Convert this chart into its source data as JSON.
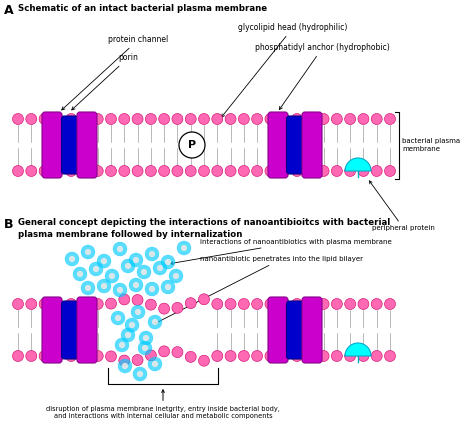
{
  "bg_color": "#ffffff",
  "membrane_color": "#FF69B4",
  "protein_color": "#CC00CC",
  "porin_color": "#0000CC",
  "peripheral_color": "#00FFFF",
  "nano_color": "#00CCFF",
  "nano_core_color": "#E8E8E8",
  "title_A": "Schematic of an intact bacterial plasma membrane",
  "title_B": "General concept depicting the interactions of nanoantibioitcs with bacterial\nplasma membrane followed by internalization",
  "label_protein_channel": "protein channel",
  "label_porin": "porin",
  "label_glycolipid": "glycolipid head (hydrophilic)",
  "label_phosphatidyl": "phosphatidyl anchor (hydrophobic)",
  "label_bacterial_plasma": "bacterial plasma\nmembrane",
  "label_peripheral": "peripheral protein",
  "label_interactions": "interactions of nanoantibiotics with plasma membrane",
  "label_penetrates": "nanoantibiotic penetrates into the lipid bilayer",
  "label_disruption": "disruption of plasma membrane inetgrity, entry inside bacterial body,\nand interactions with internal cellular and metabolic components",
  "figsize": [
    4.74,
    4.21
  ],
  "dpi": 100
}
